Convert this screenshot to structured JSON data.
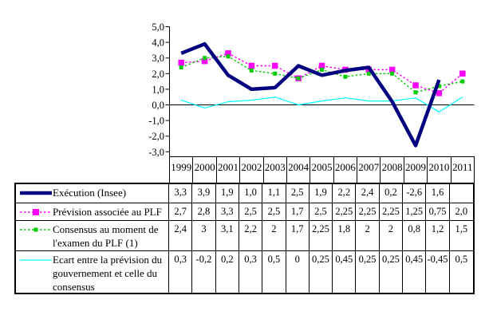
{
  "chart_data": {
    "type": "line",
    "title": "",
    "xlabel": "",
    "ylabel": "",
    "x": [
      1999,
      2000,
      2001,
      2002,
      2003,
      2004,
      2005,
      2006,
      2007,
      2008,
      2009,
      2010,
      2011
    ],
    "ylim": [
      -3.0,
      5.0
    ],
    "ytick_step": 1.0,
    "ytick_labels": [
      "5,0",
      "4,0",
      "3,0",
      "2,0",
      "1,0",
      "0,0",
      "-1,0",
      "-2,0",
      "-3,0"
    ],
    "grid": false,
    "legend_position": "table-left",
    "series": [
      {
        "name": "Exécution (Insee)",
        "color": "#000080",
        "style": "solid-thick",
        "values": [
          3.3,
          3.9,
          1.9,
          1.0,
          1.1,
          2.5,
          1.9,
          2.2,
          2.4,
          0.2,
          -2.6,
          1.6,
          null
        ]
      },
      {
        "name": "Prévision associée au PLF",
        "color": "#FF00FF",
        "style": "dashed-square",
        "values": [
          2.7,
          2.8,
          3.3,
          2.5,
          2.5,
          1.7,
          2.5,
          2.25,
          2.25,
          2.25,
          1.25,
          0.75,
          2.0
        ]
      },
      {
        "name": "Consensus au moment de l'examen du PLF (1)",
        "color": "#00CC00",
        "style": "dashed-small-square",
        "values": [
          2.4,
          3,
          3.1,
          2.2,
          2,
          1.7,
          2.25,
          1.8,
          2,
          2,
          0.8,
          1.2,
          1.5
        ]
      },
      {
        "name": "Ecart entre la prévision du gouvernement et celle du consensus",
        "color": "#00FFFF",
        "style": "solid-thin",
        "values": [
          0.3,
          -0.2,
          0.2,
          0.3,
          0.5,
          0,
          0.25,
          0.45,
          0.25,
          0.25,
          0.45,
          -0.45,
          0.5
        ]
      }
    ]
  },
  "table": {
    "years": [
      "1999",
      "2000",
      "2001",
      "2002",
      "2003",
      "2004",
      "2005",
      "2006",
      "2007",
      "2008",
      "2009",
      "2010",
      "2011"
    ],
    "rows": [
      {
        "legend": "Exécution (Insee)",
        "values": [
          "3,3",
          "3,9",
          "1,9",
          "1,0",
          "1,1",
          "2,5",
          "1,9",
          "2,2",
          "2,4",
          "0,2",
          "-2,6",
          "1,6",
          ""
        ]
      },
      {
        "legend": "Prévision associée au PLF",
        "values": [
          "2,7",
          "2,8",
          "3,3",
          "2,5",
          "2,5",
          "1,7",
          "2,5",
          "2,25",
          "2,25",
          "2,25",
          "1,25",
          "0,75",
          "2,0"
        ]
      },
      {
        "legend": "Consensus au moment de l'examen du PLF (1)",
        "values": [
          "2,4",
          "3",
          "3,1",
          "2,2",
          "2",
          "1,7",
          "2,25",
          "1,8",
          "2",
          "2",
          "0,8",
          "1,2",
          "1,5"
        ]
      },
      {
        "legend": "Ecart entre la prévision du gouvernement et celle du consensus",
        "values": [
          "0,3",
          "-0,2",
          "0,2",
          "0,3",
          "0,5",
          "0",
          "0,25",
          "0,45",
          "0,25",
          "0,25",
          "0,45",
          "-0,45",
          "0,5"
        ]
      }
    ]
  },
  "colors": {
    "execution": "#000080",
    "prevision": "#FF00FF",
    "consensus": "#00CC00",
    "ecart": "#00FFFF",
    "axis": "#000000"
  }
}
